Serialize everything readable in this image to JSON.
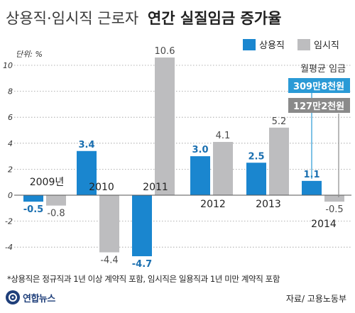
{
  "title_light": "상용직·임시직 근로자",
  "title_bold": "연간 실질임금 증가율",
  "unit_label": "단위: %",
  "colors": {
    "regular": "#1a86cf",
    "temporary": "#bdbdbf",
    "regular_box": "#2a9ad6",
    "temporary_box": "#8a8a8a",
    "title": "#3a3a3a",
    "title_bold": "#1f1f1f"
  },
  "avg_wage": {
    "label": "월평균 임금",
    "regular_value": "309만8천원",
    "temporary_value": "127만2천원"
  },
  "footnote": "*상용직은 정규직과 1년 이상 계약직 포함, 임시직은 일용직과 1년 미만 계약직 포함",
  "logo_text": "연합뉴스",
  "source": "자료/ 고용노동부",
  "chart_data": {
    "type": "bar",
    "categories": [
      "2009년",
      "2010",
      "2011",
      "2012",
      "2013",
      "2014"
    ],
    "series": [
      {
        "name": "상용직",
        "values": [
          -0.5,
          3.4,
          -4.7,
          3.0,
          2.5,
          1.1
        ],
        "value_labels": [
          "-0.5",
          "3.4",
          "-4.7",
          "3.0",
          "2.5",
          "1.1"
        ]
      },
      {
        "name": "임시직",
        "values": [
          -0.8,
          -4.4,
          10.6,
          4.1,
          5.2,
          -0.5
        ],
        "value_labels": [
          "-0.8",
          "-4.4",
          "10.6",
          "4.1",
          "5.2",
          "-0.5"
        ]
      }
    ],
    "y_ticks": [
      "10",
      "8",
      "6",
      "4",
      "2",
      "0",
      "-2",
      "-4"
    ],
    "y_tick_values": [
      10,
      8,
      6,
      4,
      2,
      0,
      -2,
      -4
    ],
    "ylim": [
      -5,
      11
    ],
    "legend_position": "top-right"
  }
}
